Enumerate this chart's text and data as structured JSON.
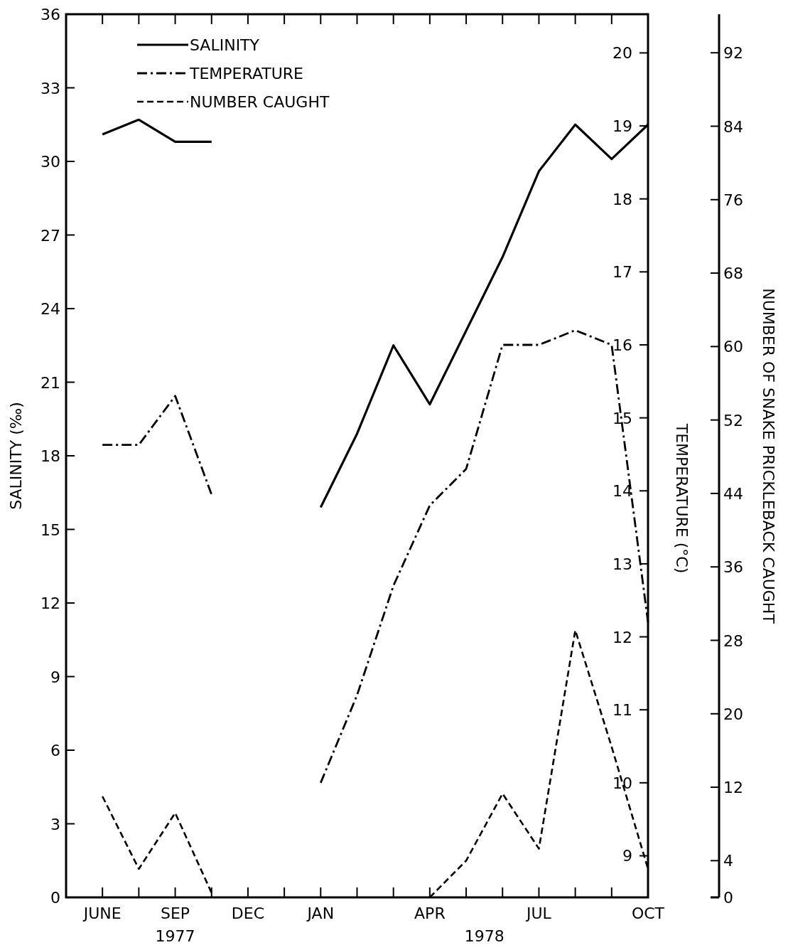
{
  "chart_data": {
    "type": "line",
    "categories": [
      "JUNE",
      null,
      "SEP",
      null,
      "DEC",
      null,
      "JAN",
      null,
      null,
      "APR",
      null,
      null,
      "JUL",
      null,
      null,
      "OCT"
    ],
    "ylabel": "SALINITY (‰)",
    "y2label": "TEMPERATURE (°C)",
    "y3label": "NUMBER OF SNAKE PRICKLEBACK CAUGHT",
    "ylim": [
      0,
      36
    ],
    "yticks": [
      0,
      3,
      6,
      9,
      12,
      15,
      18,
      21,
      24,
      27,
      30,
      33,
      36
    ],
    "y2lim": [
      8.43,
      20.53
    ],
    "y2ticks": [
      9,
      10,
      11,
      12,
      13,
      14,
      15,
      16,
      17,
      18,
      19,
      20
    ],
    "y3lim": [
      0,
      96.2
    ],
    "y3ticks": [
      0,
      4,
      12,
      20,
      28,
      36,
      44,
      52,
      60,
      68,
      76,
      84,
      92
    ],
    "series": [
      {
        "name": "SALINITY",
        "color": "#000000",
        "line_style": "solid",
        "axis": "y",
        "values": [
          31.1,
          31.7,
          30.8,
          30.8,
          null,
          null,
          15.9,
          18.9,
          22.5,
          20.1,
          23.1,
          26.1,
          29.6,
          31.5,
          30.1,
          31.5
        ]
      },
      {
        "name": "TEMPERATURE",
        "color": "#000000",
        "line_style": "dashdot",
        "axis": "y2",
        "values": [
          14.63,
          14.63,
          15.3,
          13.95,
          null,
          null,
          10.0,
          11.2,
          12.7,
          13.8,
          14.3,
          16.0,
          16.0,
          16.2,
          16.0,
          12.2
        ]
      },
      {
        "name": "NUMBER CAUGHT",
        "color": "#000000",
        "line_style": "dashed",
        "axis": "y3",
        "values": [
          11.0,
          3.1,
          9.2,
          0.5,
          null,
          null,
          null,
          null,
          null,
          0,
          4.0,
          11.3,
          5.3,
          29.1,
          16.4,
          3.1
        ]
      }
    ],
    "legend": "top left",
    "annotations": [
      "1977",
      "1978"
    ]
  }
}
